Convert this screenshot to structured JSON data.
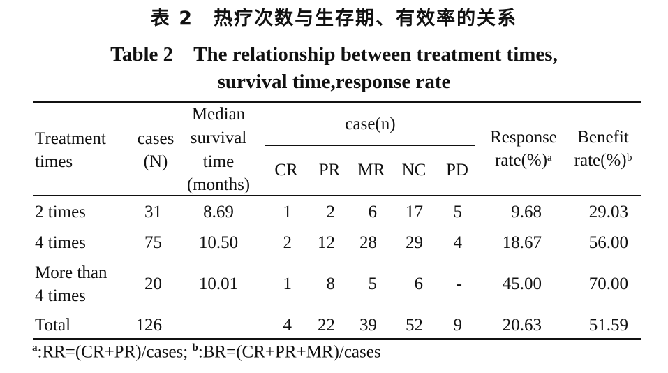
{
  "title_cn": "表 2　热疗次数与生存期、有效率的关系",
  "title_en_line1": "Table 2　The relationship between treatment times,",
  "title_en_line2": "survival time,response rate",
  "headers": {
    "treatment_1": "Treatment",
    "treatment_2": "times",
    "cases_1": "cases",
    "cases_2": "(N)",
    "median_1": "Median",
    "median_2": "survival",
    "median_3": "time",
    "median_4": "(months)",
    "case_group": "case(n)",
    "cr": "CR",
    "pr": "PR",
    "mr": "MR",
    "nc": "NC",
    "pd": "PD",
    "response_1": "Response",
    "response_2": "rate(%)ᵃ",
    "benefit_1": "Benefit",
    "benefit_2": "rate(%)ᵇ"
  },
  "rows": [
    {
      "times_1": "2 times",
      "times_2": "",
      "cases": "31",
      "median": "8.69",
      "cr": "1",
      "pr": "2",
      "mr": "6",
      "nc": "17",
      "pd": "5",
      "response": "9.68",
      "benefit": "29.03"
    },
    {
      "times_1": "4 times",
      "times_2": "",
      "cases": "75",
      "median": "10.50",
      "cr": "2",
      "pr": "12",
      "mr": "28",
      "nc": "29",
      "pd": "4",
      "response": "18.67",
      "benefit": "56.00"
    },
    {
      "times_1": "More than",
      "times_2": "4 times",
      "cases": "20",
      "median": "10.01",
      "cr": "1",
      "pr": "8",
      "mr": "5",
      "nc": "6",
      "pd": "-",
      "response": "45.00",
      "benefit": "70.00"
    },
    {
      "times_1": "Total",
      "times_2": "",
      "cases": "126",
      "median": "",
      "cr": "4",
      "pr": "22",
      "mr": "39",
      "nc": "52",
      "pd": "9",
      "response": "20.63",
      "benefit": "51.59"
    }
  ],
  "footnote": {
    "a_mark": "a",
    "a_text": ":RR=(CR+PR)/cases;",
    "b_mark": "b",
    "b_text": ":BR=(CR+PR+MR)/cases"
  }
}
